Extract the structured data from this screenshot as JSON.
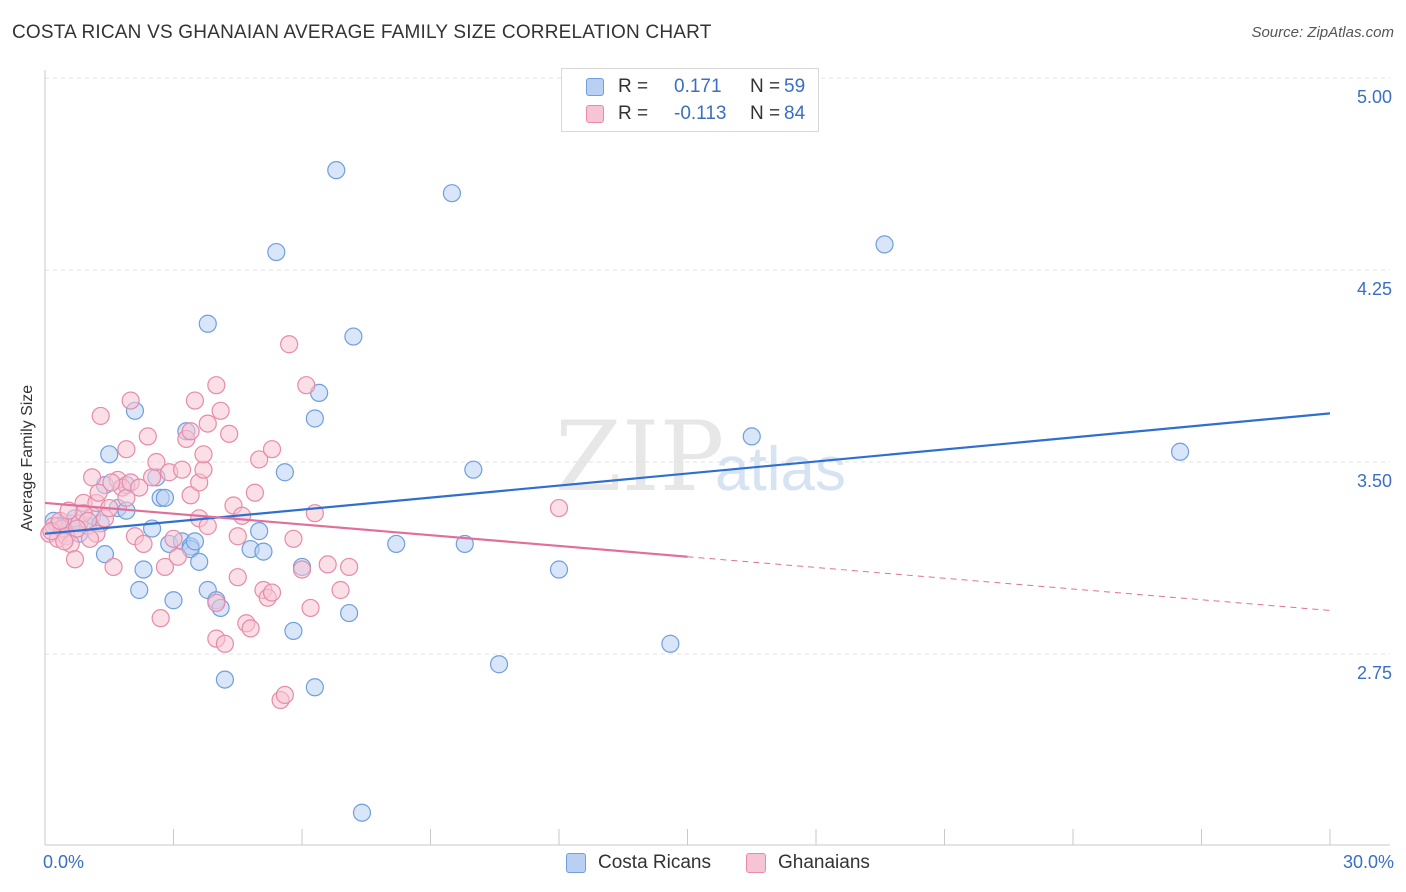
{
  "title": "COSTA RICAN VS GHANAIAN AVERAGE FAMILY SIZE CORRELATION CHART",
  "source": "Source: ZipAtlas.com",
  "watermark": {
    "zip": "ZIP",
    "atlas": "atlas"
  },
  "legend_top": {
    "rows": [
      {
        "r_label": "R =",
        "r_value": "0.171",
        "n_label": "N =",
        "n_value": "59"
      },
      {
        "r_label": "R =",
        "r_value": "-0.113",
        "n_label": "N =",
        "n_value": "84"
      }
    ]
  },
  "legend_bottom": {
    "items": [
      "Costa Ricans",
      "Ghanaians"
    ]
  },
  "colors": {
    "blue_fill": "#b9d0f2",
    "blue_stroke": "#6f9fdc",
    "blue_line": "#2f6fcf",
    "pink_fill": "#f6c4d4",
    "pink_stroke": "#e88aa8",
    "pink_line": "#e0709a",
    "tick_text": "#3a6fc4",
    "grid": "#e2e2e2"
  },
  "chart_data": {
    "type": "scatter",
    "title": "COSTA RICAN VS GHANAIAN AVERAGE FAMILY SIZE CORRELATION CHART",
    "xlabel": "",
    "ylabel": "Average Family Size",
    "xlim": [
      0,
      30
    ],
    "ylim": [
      2.0,
      5.1
    ],
    "x_tick_labels": [
      "0.0%",
      "30.0%"
    ],
    "y_ticks": [
      2.75,
      3.5,
      4.25,
      5.0
    ],
    "y_tick_labels": [
      "2.75",
      "3.50",
      "4.25",
      "5.00"
    ],
    "grid": "horizontal dashed",
    "series": [
      {
        "name": "Costa Ricans",
        "trend": {
          "x0": 0.0,
          "y0": 3.22,
          "x1": 30.0,
          "y1": 3.69,
          "style": "solid"
        },
        "points": [
          [
            0.2,
            3.27
          ],
          [
            0.4,
            3.24
          ],
          [
            0.6,
            3.26
          ],
          [
            0.8,
            3.22
          ],
          [
            1.0,
            3.25
          ],
          [
            1.1,
            3.29
          ],
          [
            1.3,
            3.26
          ],
          [
            1.4,
            3.41
          ],
          [
            1.4,
            3.14
          ],
          [
            1.5,
            3.53
          ],
          [
            1.7,
            3.32
          ],
          [
            1.9,
            3.31
          ],
          [
            1.9,
            3.41
          ],
          [
            2.1,
            3.7
          ],
          [
            2.2,
            3.0
          ],
          [
            2.3,
            3.08
          ],
          [
            2.5,
            3.24
          ],
          [
            2.6,
            3.44
          ],
          [
            2.7,
            3.36
          ],
          [
            2.8,
            3.36
          ],
          [
            2.9,
            3.18
          ],
          [
            3.0,
            2.96
          ],
          [
            3.2,
            3.19
          ],
          [
            3.3,
            3.62
          ],
          [
            3.4,
            3.17
          ],
          [
            3.4,
            3.16
          ],
          [
            3.5,
            3.19
          ],
          [
            3.6,
            3.11
          ],
          [
            3.8,
            3.0
          ],
          [
            3.8,
            4.04
          ],
          [
            4.0,
            2.96
          ],
          [
            4.1,
            2.93
          ],
          [
            4.2,
            2.65
          ],
          [
            4.8,
            3.16
          ],
          [
            5.0,
            3.23
          ],
          [
            5.1,
            3.15
          ],
          [
            5.4,
            4.32
          ],
          [
            5.6,
            3.46
          ],
          [
            5.8,
            2.84
          ],
          [
            6.0,
            3.09
          ],
          [
            6.3,
            3.67
          ],
          [
            6.4,
            3.77
          ],
          [
            6.3,
            2.62
          ],
          [
            6.8,
            4.64
          ],
          [
            7.1,
            2.91
          ],
          [
            7.2,
            3.99
          ],
          [
            7.4,
            2.13
          ],
          [
            8.2,
            3.18
          ],
          [
            9.5,
            4.55
          ],
          [
            9.8,
            3.18
          ],
          [
            10.0,
            3.47
          ],
          [
            10.6,
            2.71
          ],
          [
            12.0,
            3.08
          ],
          [
            14.6,
            2.79
          ],
          [
            16.5,
            3.6
          ],
          [
            19.6,
            4.35
          ],
          [
            26.5,
            3.54
          ],
          [
            0.3,
            3.25
          ],
          [
            0.7,
            3.28
          ]
        ]
      },
      {
        "name": "Ghanaians",
        "trend": {
          "x0": 0.0,
          "y0": 3.34,
          "x1": 15.0,
          "y1": 3.13,
          "style": "solid",
          "extension": {
            "x1": 30.0,
            "y1": 2.92,
            "style": "dashed"
          }
        },
        "points": [
          [
            0.1,
            3.22
          ],
          [
            0.2,
            3.25
          ],
          [
            0.3,
            3.2
          ],
          [
            0.4,
            3.24
          ],
          [
            0.5,
            3.21
          ],
          [
            0.6,
            3.18
          ],
          [
            0.7,
            3.12
          ],
          [
            0.8,
            3.26
          ],
          [
            0.9,
            3.34
          ],
          [
            0.9,
            3.3
          ],
          [
            1.0,
            3.27
          ],
          [
            1.1,
            3.44
          ],
          [
            1.2,
            3.22
          ],
          [
            1.2,
            3.34
          ],
          [
            1.3,
            3.68
          ],
          [
            1.4,
            3.28
          ],
          [
            1.5,
            3.32
          ],
          [
            1.6,
            3.09
          ],
          [
            1.7,
            3.43
          ],
          [
            1.8,
            3.4
          ],
          [
            1.9,
            3.55
          ],
          [
            1.9,
            3.36
          ],
          [
            2.0,
            3.42
          ],
          [
            2.0,
            3.74
          ],
          [
            2.1,
            3.21
          ],
          [
            2.2,
            3.4
          ],
          [
            2.3,
            3.18
          ],
          [
            2.4,
            3.6
          ],
          [
            2.5,
            3.44
          ],
          [
            2.6,
            3.5
          ],
          [
            2.7,
            2.89
          ],
          [
            2.8,
            3.09
          ],
          [
            2.9,
            3.46
          ],
          [
            3.0,
            3.2
          ],
          [
            3.1,
            3.13
          ],
          [
            3.2,
            3.47
          ],
          [
            3.3,
            3.59
          ],
          [
            3.4,
            3.37
          ],
          [
            3.4,
            3.62
          ],
          [
            3.5,
            3.74
          ],
          [
            3.6,
            3.28
          ],
          [
            3.6,
            3.42
          ],
          [
            3.7,
            3.47
          ],
          [
            3.7,
            3.53
          ],
          [
            3.8,
            3.65
          ],
          [
            3.8,
            3.25
          ],
          [
            4.0,
            2.81
          ],
          [
            4.0,
            2.95
          ],
          [
            4.0,
            3.8
          ],
          [
            4.1,
            3.7
          ],
          [
            4.2,
            2.79
          ],
          [
            4.3,
            3.61
          ],
          [
            4.4,
            3.33
          ],
          [
            4.5,
            3.05
          ],
          [
            4.5,
            3.21
          ],
          [
            4.6,
            3.29
          ],
          [
            4.7,
            2.87
          ],
          [
            4.8,
            2.85
          ],
          [
            4.9,
            3.38
          ],
          [
            5.0,
            3.51
          ],
          [
            5.1,
            3.0
          ],
          [
            5.2,
            2.97
          ],
          [
            5.3,
            3.55
          ],
          [
            5.3,
            2.99
          ],
          [
            5.5,
            2.57
          ],
          [
            5.6,
            2.59
          ],
          [
            5.7,
            3.96
          ],
          [
            5.8,
            3.2
          ],
          [
            6.0,
            3.08
          ],
          [
            6.1,
            3.8
          ],
          [
            6.2,
            2.93
          ],
          [
            6.3,
            3.3
          ],
          [
            6.6,
            3.1
          ],
          [
            6.9,
            3.0
          ],
          [
            7.1,
            3.09
          ],
          [
            12.0,
            3.32
          ],
          [
            0.15,
            3.23
          ],
          [
            0.35,
            3.27
          ],
          [
            0.55,
            3.31
          ],
          [
            0.75,
            3.24
          ],
          [
            1.05,
            3.2
          ],
          [
            1.25,
            3.38
          ],
          [
            1.55,
            3.42
          ],
          [
            0.45,
            3.19
          ]
        ]
      }
    ]
  }
}
